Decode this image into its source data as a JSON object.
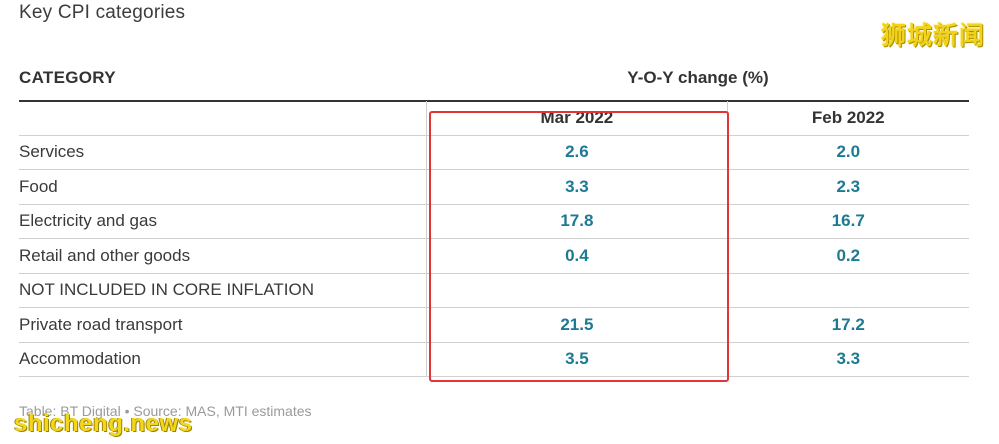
{
  "title": "Key CPI categories",
  "watermark_top": "狮城新闻",
  "header": {
    "category": "CATEGORY",
    "yoy": "Y-O-Y change (%)"
  },
  "columns": {
    "mar": "Mar 2022",
    "feb": "Feb 2022"
  },
  "rows": [
    {
      "category": "Services",
      "mar": "2.6",
      "feb": "2.0"
    },
    {
      "category": "Food",
      "mar": "3.3",
      "feb": "2.3"
    },
    {
      "category": "Electricity and gas",
      "mar": "17.8",
      "feb": "16.7"
    },
    {
      "category": "Retail and other goods",
      "mar": "0.4",
      "feb": "0.2"
    },
    {
      "category": "NOT INCLUDED IN CORE INFLATION",
      "mar": "",
      "feb": ""
    },
    {
      "category": "Private road transport",
      "mar": "21.5",
      "feb": "17.2"
    },
    {
      "category": "Accommodation",
      "mar": "3.5",
      "feb": "3.3"
    }
  ],
  "source": "Table: BT Digital • Source: MAS, MTI estimates",
  "watermark_bottom": "shicheng.news",
  "colors": {
    "value": "#1d7a93",
    "highlight": "#e23636"
  }
}
